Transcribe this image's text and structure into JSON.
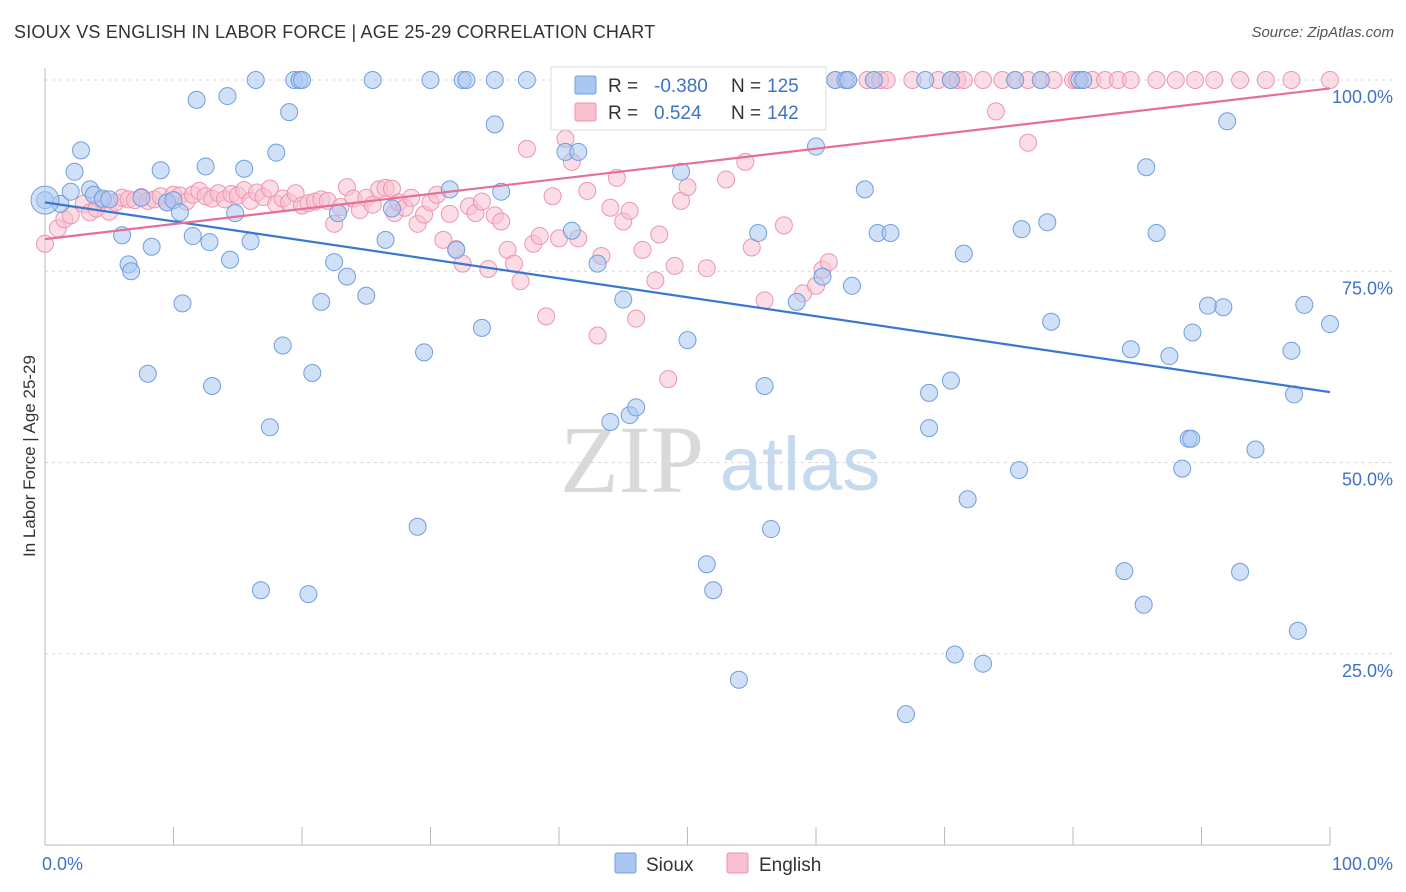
{
  "title": "SIOUX VS ENGLISH IN LABOR FORCE | AGE 25-29 CORRELATION CHART",
  "source": "Source: ZipAtlas.com",
  "watermark": {
    "zip": "ZIP",
    "atlas": "atlas"
  },
  "colors": {
    "sioux_fill": "#a9c6f0",
    "sioux_stroke": "#6f9fe0",
    "sioux_line": "#3a78d0",
    "english_fill": "#f7c1d0",
    "english_stroke": "#ee95b0",
    "english_line": "#e66f97",
    "axis_value": "#3f72c8",
    "grid": "#d8d8d8"
  },
  "legend": {
    "rows": [
      {
        "r_label": "R = ",
        "r_value": "-0.380",
        "n_label": "N = ",
        "n_value": "125"
      },
      {
        "r_label": "R = ",
        "r_value": "0.524",
        "n_label": "N = ",
        "n_value": "142"
      }
    ],
    "bottom": [
      "Sioux",
      "English"
    ]
  },
  "chart_data": {
    "type": "scatter",
    "title": "SIOUX VS ENGLISH IN LABOR FORCE | AGE 25-29 CORRELATION CHART",
    "xlabel": "",
    "ylabel": "In Labor Force | Age 25-29",
    "xlim": [
      0,
      100
    ],
    "ylim": [
      0,
      100
    ],
    "x_tick_labels": [
      "0.0%",
      "100.0%"
    ],
    "y_tick_labels": [
      "25.0%",
      "50.0%",
      "75.0%",
      "100.0%"
    ],
    "y_ticks": [
      25,
      50,
      75,
      100
    ],
    "grid": true,
    "legend_position": "top-center",
    "series": [
      {
        "name": "Sioux",
        "r": -0.38,
        "n": 125,
        "trend": {
          "x": [
            0,
            100
          ],
          "y": [
            84,
            59.2
          ]
        },
        "points": [
          [
            0,
            84.3
          ],
          [
            1.2,
            83.8
          ],
          [
            2,
            85.4
          ],
          [
            2.3,
            88
          ],
          [
            2.8,
            90.8
          ],
          [
            3.5,
            85.7
          ],
          [
            3.8,
            85
          ],
          [
            4.5,
            84.5
          ],
          [
            5,
            84.4
          ],
          [
            6,
            79.7
          ],
          [
            6.5,
            75.9
          ],
          [
            6.7,
            75
          ],
          [
            7.5,
            84.6
          ],
          [
            8,
            61.6
          ],
          [
            8.3,
            78.2
          ],
          [
            9,
            88.2
          ],
          [
            9.5,
            84
          ],
          [
            10,
            84.3
          ],
          [
            10.5,
            82.7
          ],
          [
            10.7,
            70.8
          ],
          [
            11.5,
            79.6
          ],
          [
            11.8,
            97.4
          ],
          [
            12.5,
            88.7
          ],
          [
            12.8,
            78.8
          ],
          [
            13,
            60
          ],
          [
            14.2,
            97.9
          ],
          [
            14.4,
            76.5
          ],
          [
            14.8,
            82.6
          ],
          [
            15.5,
            88.4
          ],
          [
            16,
            78.9
          ],
          [
            16.4,
            100
          ],
          [
            16.8,
            33.3
          ],
          [
            17.5,
            54.6
          ],
          [
            18,
            90.5
          ],
          [
            18.5,
            65.3
          ],
          [
            19,
            95.8
          ],
          [
            19.4,
            100
          ],
          [
            19.8,
            100
          ],
          [
            20,
            100
          ],
          [
            20.5,
            32.8
          ],
          [
            20.8,
            61.7
          ],
          [
            21.5,
            71
          ],
          [
            22.5,
            76.2
          ],
          [
            22.8,
            82.6
          ],
          [
            23.5,
            74.3
          ],
          [
            25,
            71.8
          ],
          [
            25.5,
            100
          ],
          [
            26.5,
            79.1
          ],
          [
            27,
            83.2
          ],
          [
            29,
            41.6
          ],
          [
            29.5,
            64.4
          ],
          [
            30,
            100
          ],
          [
            31.5,
            85.7
          ],
          [
            32,
            77.8
          ],
          [
            32.5,
            100
          ],
          [
            32.8,
            100
          ],
          [
            34,
            67.6
          ],
          [
            35,
            100
          ],
          [
            35,
            94.2
          ],
          [
            35.5,
            85.4
          ],
          [
            37.5,
            100
          ],
          [
            40.5,
            90.6
          ],
          [
            41,
            80.3
          ],
          [
            41.5,
            90.6
          ],
          [
            43,
            76
          ],
          [
            44,
            55.3
          ],
          [
            45,
            71.3
          ],
          [
            45.5,
            56.2
          ],
          [
            46,
            57.2
          ],
          [
            47,
            100
          ],
          [
            49.5,
            88
          ],
          [
            50,
            66
          ],
          [
            51.5,
            36.7
          ],
          [
            52,
            33.3
          ],
          [
            52.5,
            100
          ],
          [
            54,
            21.6
          ],
          [
            55.5,
            80
          ],
          [
            56,
            60
          ],
          [
            56.5,
            41.3
          ],
          [
            57,
            100
          ],
          [
            58.5,
            71
          ],
          [
            59.5,
            100
          ],
          [
            60,
            91.3
          ],
          [
            60.5,
            74.3
          ],
          [
            61.5,
            100
          ],
          [
            62.3,
            100
          ],
          [
            62.5,
            100
          ],
          [
            62.8,
            73.1
          ],
          [
            63.8,
            85.7
          ],
          [
            64.5,
            100
          ],
          [
            64.8,
            80
          ],
          [
            65.8,
            80
          ],
          [
            67,
            17.1
          ],
          [
            68.5,
            100
          ],
          [
            68.8,
            59.1
          ],
          [
            68.8,
            54.5
          ],
          [
            70.5,
            60.7
          ],
          [
            70.5,
            100
          ],
          [
            70.8,
            24.9
          ],
          [
            71.5,
            77.3
          ],
          [
            71.8,
            45.2
          ],
          [
            73,
            23.7
          ],
          [
            75.5,
            100
          ],
          [
            75.8,
            49
          ],
          [
            76,
            80.5
          ],
          [
            77.5,
            100
          ],
          [
            78,
            81.4
          ],
          [
            78.3,
            68.4
          ],
          [
            80.5,
            100
          ],
          [
            80.8,
            100
          ],
          [
            84,
            35.8
          ],
          [
            84.5,
            64.8
          ],
          [
            85.5,
            31.4
          ],
          [
            85.7,
            88.6
          ],
          [
            86.5,
            80
          ],
          [
            87.5,
            63.9
          ],
          [
            88.5,
            49.2
          ],
          [
            89,
            53.1
          ],
          [
            89.2,
            53.1
          ],
          [
            89.3,
            67
          ],
          [
            90.5,
            70.5
          ],
          [
            91.7,
            70.3
          ],
          [
            92,
            94.6
          ],
          [
            93,
            35.7
          ],
          [
            94.2,
            51.7
          ],
          [
            97,
            64.6
          ],
          [
            97.2,
            58.9
          ],
          [
            97.5,
            28
          ],
          [
            98,
            70.6
          ],
          [
            100,
            68.1
          ]
        ]
      },
      {
        "name": "English",
        "r": 0.524,
        "n": 142,
        "trend": {
          "x": [
            0,
            100
          ],
          "y": [
            79.2,
            98.9
          ]
        },
        "points": [
          [
            0,
            78.6
          ],
          [
            1,
            80.6
          ],
          [
            1.5,
            81.8
          ],
          [
            2,
            82.3
          ],
          [
            3,
            83.8
          ],
          [
            3.5,
            82.7
          ],
          [
            4,
            83.2
          ],
          [
            4.5,
            84.3
          ],
          [
            5,
            82.8
          ],
          [
            5.5,
            84
          ],
          [
            6,
            84.6
          ],
          [
            6.5,
            84.4
          ],
          [
            7,
            84.3
          ],
          [
            7.5,
            84.7
          ],
          [
            8,
            84.2
          ],
          [
            8.5,
            84.4
          ],
          [
            9,
            84.8
          ],
          [
            9.5,
            84
          ],
          [
            10,
            85
          ],
          [
            10.5,
            84.9
          ],
          [
            11,
            84.1
          ],
          [
            11.5,
            85
          ],
          [
            12,
            85.5
          ],
          [
            12.5,
            84.8
          ],
          [
            13,
            84.5
          ],
          [
            13.5,
            85.2
          ],
          [
            14,
            84.4
          ],
          [
            14.5,
            85.1
          ],
          [
            15,
            84.9
          ],
          [
            15.5,
            85.6
          ],
          [
            16,
            84.2
          ],
          [
            16.5,
            85.3
          ],
          [
            17,
            84.7
          ],
          [
            17.5,
            85.8
          ],
          [
            18,
            83.8
          ],
          [
            18.5,
            84.5
          ],
          [
            19,
            84
          ],
          [
            19.5,
            85.2
          ],
          [
            20,
            83.6
          ],
          [
            20.5,
            83.9
          ],
          [
            21,
            84.1
          ],
          [
            21.5,
            84.4
          ],
          [
            22,
            84.2
          ],
          [
            22.5,
            81.2
          ],
          [
            23,
            83.4
          ],
          [
            23.5,
            86
          ],
          [
            24,
            84.5
          ],
          [
            24.5,
            83
          ],
          [
            25,
            84.6
          ],
          [
            25.5,
            83.7
          ],
          [
            26,
            85.7
          ],
          [
            26.5,
            85.9
          ],
          [
            27,
            85.8
          ],
          [
            27.2,
            82.6
          ],
          [
            27.5,
            84
          ],
          [
            28,
            83.3
          ],
          [
            28.5,
            84.6
          ],
          [
            29,
            81.2
          ],
          [
            29.5,
            82.4
          ],
          [
            30,
            84
          ],
          [
            30.5,
            85
          ],
          [
            31,
            79.1
          ],
          [
            31.5,
            82.5
          ],
          [
            32,
            77.9
          ],
          [
            32.5,
            76
          ],
          [
            33,
            83.5
          ],
          [
            33.5,
            82.6
          ],
          [
            34,
            84.1
          ],
          [
            34.5,
            75.3
          ],
          [
            35,
            82.3
          ],
          [
            35.5,
            81.5
          ],
          [
            36,
            77.8
          ],
          [
            36.5,
            76
          ],
          [
            37,
            73.7
          ],
          [
            37.5,
            91
          ],
          [
            38,
            78.6
          ],
          [
            38.5,
            79.6
          ],
          [
            39,
            69.1
          ],
          [
            39.5,
            84.8
          ],
          [
            40,
            79.3
          ],
          [
            40.5,
            92.3
          ],
          [
            41,
            89.3
          ],
          [
            41.5,
            79.3
          ],
          [
            42.2,
            85.5
          ],
          [
            42.8,
            100
          ],
          [
            43,
            66.6
          ],
          [
            43.3,
            77
          ],
          [
            44,
            83.3
          ],
          [
            44.5,
            87.2
          ],
          [
            45,
            81.5
          ],
          [
            45.5,
            82.9
          ],
          [
            46,
            68.8
          ],
          [
            46.5,
            77.8
          ],
          [
            47.5,
            73.8
          ],
          [
            47.8,
            79.8
          ],
          [
            48,
            100
          ],
          [
            48.5,
            60.9
          ],
          [
            49,
            75.7
          ],
          [
            49.5,
            84.2
          ],
          [
            50,
            86
          ],
          [
            51.5,
            75.4
          ],
          [
            53,
            87
          ],
          [
            54.5,
            89.3
          ],
          [
            55,
            78.1
          ],
          [
            56,
            71.2
          ],
          [
            56.5,
            100
          ],
          [
            57.5,
            81
          ],
          [
            59,
            72.1
          ],
          [
            60,
            73.1
          ],
          [
            60.5,
            75.2
          ],
          [
            61,
            76.2
          ],
          [
            61.5,
            100
          ],
          [
            62.5,
            100
          ],
          [
            64,
            100
          ],
          [
            64.5,
            100
          ],
          [
            65,
            100
          ],
          [
            65.5,
            100
          ],
          [
            67.5,
            100
          ],
          [
            69.5,
            100
          ],
          [
            70.5,
            100
          ],
          [
            71,
            100
          ],
          [
            71.5,
            100
          ],
          [
            73,
            100
          ],
          [
            74,
            95.9
          ],
          [
            74.5,
            100
          ],
          [
            75.5,
            100
          ],
          [
            76.5,
            100
          ],
          [
            77.5,
            100
          ],
          [
            78.5,
            100
          ],
          [
            80,
            100
          ],
          [
            80.3,
            100
          ],
          [
            81.5,
            100
          ],
          [
            82.5,
            100
          ],
          [
            83.5,
            100
          ],
          [
            84.5,
            100
          ],
          [
            86.5,
            100
          ],
          [
            88,
            100
          ],
          [
            89.5,
            100
          ],
          [
            91,
            100
          ],
          [
            93,
            100
          ],
          [
            95,
            100
          ],
          [
            97,
            100
          ],
          [
            100,
            100
          ],
          [
            76.5,
            91.8
          ]
        ]
      }
    ]
  }
}
